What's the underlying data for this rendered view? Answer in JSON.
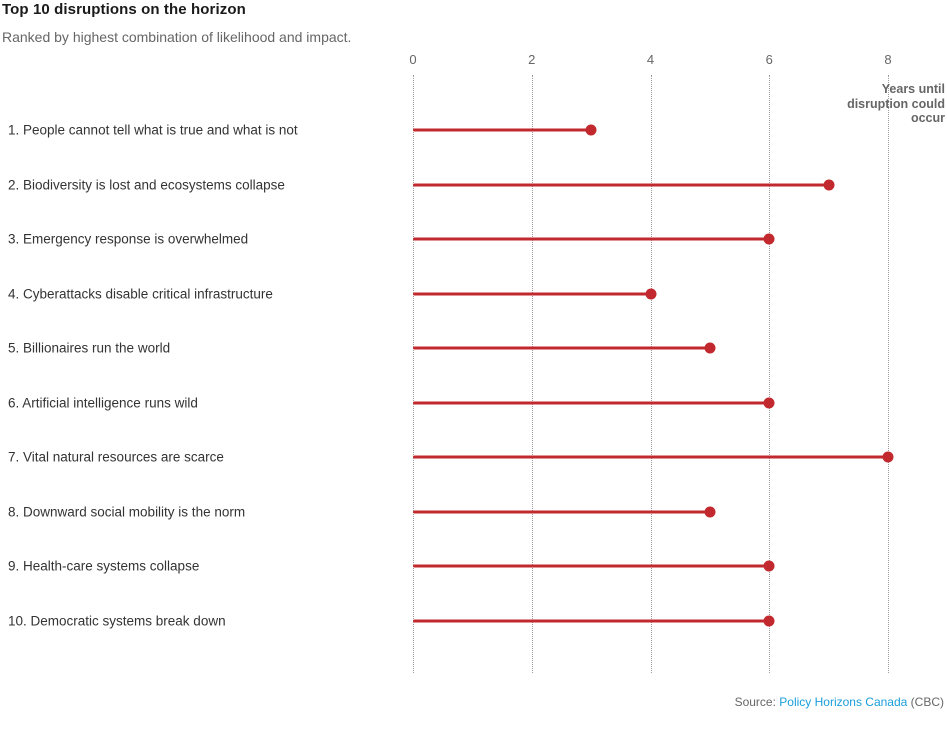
{
  "header": {
    "title": "Top 10 disruptions on the horizon",
    "subtitle": "Ranked by highest combination of likelihood and impact."
  },
  "chart_data": {
    "type": "bar",
    "variant": "horizontal-lollipop",
    "title": "Top 10 disruptions on the horizon",
    "subtitle": "Ranked by highest combination of likelihood and impact.",
    "categories": [
      "1. People cannot tell what is true and what is not",
      "2. Biodiversity is lost and ecosystems collapse",
      "3. Emergency response is overwhelmed",
      "4. Cyberattacks disable critical infrastructure",
      "5. Billionaires run the world",
      "6. Artificial intelligence runs wild",
      "7. Vital natural resources are scarce",
      "8. Downward social mobility is the norm",
      "9. Health-care systems collapse",
      "10. Democratic systems break down"
    ],
    "values": [
      3,
      7,
      6,
      4,
      5,
      6,
      8,
      5,
      6,
      6
    ],
    "xlabel": "Years until disruption could occur",
    "xlim": [
      0,
      8
    ],
    "xticks": [
      0,
      2,
      4,
      6,
      8
    ],
    "grid": "vertical-dotted",
    "legend": "none"
  },
  "footer": {
    "source_prefix": "Source: ",
    "source_link": "Policy Horizons Canada",
    "source_suffix": " (CBC)"
  },
  "colors": {
    "accent_red": "#c2292e",
    "link_blue": "#1a9ed9",
    "grid_gray": "#9b9b9b",
    "title_dark": "#1a1a1a",
    "text_gray": "#666666",
    "label_dark": "#333333"
  }
}
